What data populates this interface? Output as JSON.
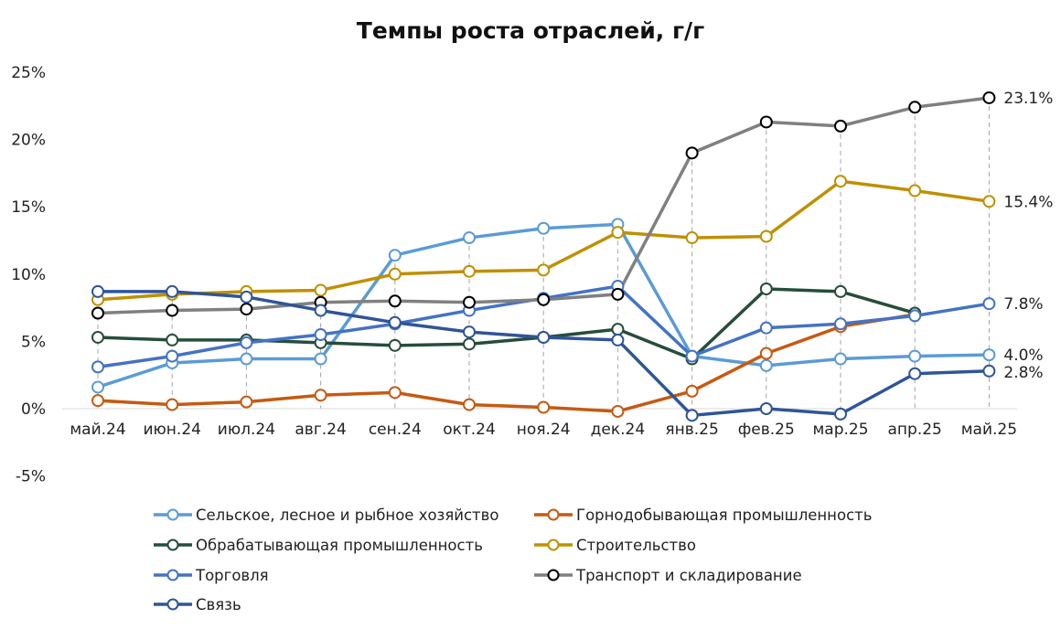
{
  "chart_data": {
    "type": "line",
    "title": "Темпы роста отраслей, г/г",
    "xlabel": "",
    "ylabel": "",
    "categories": [
      "май.24",
      "июн.24",
      "июл.24",
      "авг.24",
      "сен.24",
      "окт.24",
      "ноя.24",
      "дек.24",
      "янв.25",
      "фев.25",
      "мар.25",
      "апр.25",
      "май.25"
    ],
    "y_ticks": [
      "25%",
      "20%",
      "15%",
      "10%",
      "5%",
      "0%",
      "-5%"
    ],
    "ylim": [
      -5,
      25
    ],
    "grid": "vertical dashed drop lines at each category",
    "legend_position": "bottom",
    "series": [
      {
        "name": "Сельское, лесное и рыбное хозяйство",
        "color": "#5B9BD5",
        "values": [
          1.6,
          3.4,
          3.7,
          3.7,
          11.4,
          12.7,
          13.4,
          13.7,
          3.9,
          3.2,
          3.7,
          3.9,
          4.0
        ],
        "end_label": "4.0%"
      },
      {
        "name": "Горнодобывающая промышленность",
        "color": "#C55A11",
        "values": [
          0.6,
          0.3,
          0.5,
          1.0,
          1.2,
          0.3,
          0.1,
          -0.2,
          1.3,
          4.1,
          6.1,
          7.0,
          null
        ],
        "end_label": ""
      },
      {
        "name": "Обрабатывающая промышленность",
        "color": "#264D3B",
        "values": [
          5.3,
          5.1,
          5.1,
          4.9,
          4.7,
          4.8,
          5.3,
          5.9,
          3.7,
          8.9,
          8.7,
          7.1,
          null
        ],
        "end_label": ""
      },
      {
        "name": "Строительство",
        "color": "#BF9000",
        "values": [
          8.1,
          8.5,
          8.7,
          8.8,
          10.0,
          10.2,
          10.3,
          13.1,
          12.7,
          12.8,
          16.9,
          16.2,
          15.4
        ],
        "end_label": "15.4%"
      },
      {
        "name": "Торговля",
        "color": "#4472C4",
        "values": [
          3.1,
          3.9,
          4.9,
          5.5,
          6.3,
          7.3,
          8.2,
          9.1,
          3.9,
          6.0,
          6.3,
          6.9,
          7.8
        ],
        "end_label": "7.8%"
      },
      {
        "name": "Транспорт и складирование",
        "color": "#808080",
        "values": [
          7.1,
          7.3,
          7.4,
          7.9,
          8.0,
          7.9,
          8.1,
          8.5,
          19.0,
          21.3,
          21.0,
          22.4,
          23.1
        ],
        "end_label": "23.1%"
      },
      {
        "name": "Связь",
        "color": "#2F5597",
        "values": [
          8.7,
          8.7,
          8.3,
          7.3,
          6.4,
          5.7,
          5.3,
          5.1,
          -0.5,
          0.0,
          -0.4,
          2.6,
          2.8
        ],
        "end_label": "2.8%"
      }
    ]
  }
}
